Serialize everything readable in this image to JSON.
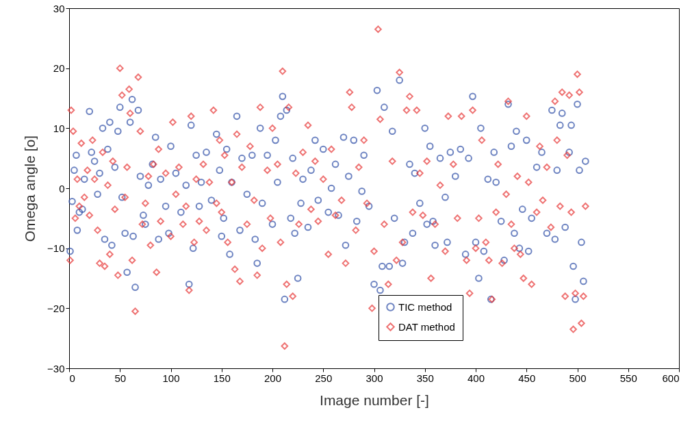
{
  "chart_data": {
    "type": "scatter",
    "xlabel": "Image number [-]",
    "ylabel": "Omega angle [o]",
    "xlim": [
      0,
      600
    ],
    "xticks": [
      0,
      50,
      100,
      150,
      200,
      250,
      300,
      350,
      400,
      450,
      500,
      550,
      600
    ],
    "ylim": [
      -30,
      30
    ],
    "yticks": [
      -30,
      -20,
      -10,
      0,
      10,
      20,
      30
    ],
    "grid": false,
    "legend": "bottom right",
    "series": [
      {
        "name": "TIC method",
        "color": "#3050a8",
        "marker": "circle",
        "x": [
          1,
          3,
          5,
          7,
          8,
          10,
          13,
          15,
          20,
          22,
          25,
          28,
          30,
          33,
          35,
          38,
          40,
          42,
          45,
          48,
          50,
          52,
          55,
          57,
          60,
          62,
          63,
          65,
          68,
          70,
          73,
          75,
          78,
          82,
          85,
          88,
          90,
          95,
          98,
          100,
          105,
          110,
          115,
          118,
          120,
          122,
          125,
          128,
          130,
          135,
          140,
          145,
          148,
          150,
          152,
          155,
          158,
          160,
          165,
          168,
          170,
          175,
          180,
          183,
          185,
          188,
          190,
          195,
          200,
          203,
          205,
          208,
          210,
          212,
          214,
          218,
          220,
          222,
          225,
          228,
          230,
          235,
          238,
          242,
          245,
          250,
          255,
          258,
          262,
          265,
          270,
          272,
          275,
          280,
          283,
          288,
          290,
          295,
          300,
          303,
          306,
          308,
          310,
          315,
          318,
          320,
          325,
          328,
          330,
          335,
          338,
          340,
          345,
          350,
          352,
          355,
          358,
          360,
          365,
          370,
          372,
          375,
          380,
          385,
          390,
          393,
          397,
          400,
          403,
          405,
          408,
          412,
          415,
          418,
          420,
          425,
          428,
          432,
          435,
          438,
          440,
          443,
          446,
          450,
          452,
          455,
          460,
          465,
          470,
          475,
          478,
          480,
          483,
          485,
          488,
          492,
          494,
          496,
          498,
          500,
          502,
          504,
          506,
          508
        ],
        "values": [
          -10.5,
          -2.2,
          3,
          5.5,
          -7,
          -4,
          -3.5,
          1.5,
          12.8,
          6,
          4.5,
          -1,
          2.5,
          10,
          -8.5,
          6.5,
          11,
          -9.5,
          3.5,
          9.5,
          13.5,
          -1.5,
          -7.5,
          -14,
          11,
          14.8,
          -8,
          -16.5,
          13,
          2,
          -4.5,
          -6,
          0.5,
          4,
          8.5,
          -8.5,
          1.5,
          -3,
          -7.5,
          7,
          2.5,
          -4,
          0.5,
          -16,
          10.5,
          -10,
          5.5,
          -3,
          1,
          6,
          -2,
          9,
          3,
          -8,
          -5,
          6.5,
          -11,
          1,
          12,
          -7,
          5,
          -1,
          5.5,
          -8.5,
          -12.5,
          10,
          -2.5,
          5.5,
          -6,
          8,
          1,
          12,
          15.3,
          -18.5,
          13,
          -5,
          5,
          -7.5,
          -15,
          -2.5,
          1.5,
          -6.5,
          3,
          8,
          -2,
          6.5,
          -4,
          0,
          4,
          -4.5,
          8.5,
          -9.5,
          2,
          8,
          -5.5,
          -0.5,
          5.5,
          -3,
          -16,
          16.3,
          -17,
          -13,
          13.5,
          -13,
          9.5,
          -5,
          18,
          -12.5,
          -9,
          4,
          -7.5,
          2.5,
          -2.5,
          10,
          -6,
          7,
          -5.5,
          -9.5,
          5,
          -1.5,
          -9,
          6,
          2,
          6.5,
          -11,
          5,
          15.3,
          -9,
          -15,
          10,
          -10.5,
          1.5,
          -18.5,
          6,
          1,
          -5.5,
          -12,
          14,
          7,
          -7.5,
          9.5,
          -10,
          -3.5,
          8,
          -10.5,
          -5,
          3.5,
          6,
          -7.5,
          13,
          -8.5,
          3,
          10.5,
          12.5,
          -6.5,
          6,
          10.5,
          -13,
          -18.5,
          14,
          3,
          -9,
          -15.5,
          4.5
        ]
      },
      {
        "name": "DAT method",
        "color": "#e83838",
        "marker": "diamond",
        "x": [
          1,
          2,
          4,
          6,
          8,
          10,
          12,
          15,
          18,
          20,
          23,
          25,
          28,
          30,
          33,
          35,
          38,
          40,
          43,
          45,
          48,
          50,
          52,
          55,
          57,
          59,
          60,
          62,
          65,
          68,
          70,
          72,
          75,
          78,
          80,
          83,
          86,
          88,
          90,
          95,
          100,
          102,
          105,
          108,
          112,
          115,
          118,
          120,
          123,
          125,
          128,
          132,
          135,
          138,
          142,
          145,
          148,
          150,
          153,
          156,
          160,
          163,
          165,
          168,
          170,
          175,
          178,
          182,
          185,
          188,
          190,
          195,
          198,
          200,
          205,
          208,
          210,
          212,
          214,
          216,
          220,
          223,
          226,
          230,
          235,
          238,
          242,
          245,
          250,
          255,
          258,
          262,
          268,
          272,
          276,
          278,
          282,
          285,
          290,
          293,
          298,
          300,
          304,
          306,
          310,
          314,
          318,
          322,
          325,
          328,
          332,
          335,
          338,
          342,
          345,
          348,
          352,
          356,
          360,
          365,
          370,
          373,
          378,
          382,
          386,
          391,
          394,
          397,
          400,
          403,
          406,
          410,
          413,
          416,
          420,
          422,
          426,
          430,
          432,
          435,
          438,
          441,
          444,
          447,
          450,
          452,
          455,
          460,
          463,
          466,
          470,
          474,
          478,
          480,
          483,
          485,
          488,
          490,
          492,
          494,
          496,
          498,
          500,
          502,
          504,
          506,
          508
        ],
        "values": [
          -12,
          13,
          9.5,
          -5,
          1.5,
          -3,
          7.5,
          -1.5,
          3,
          -4.5,
          8,
          1.5,
          -7,
          -12.5,
          6,
          -13,
          0.5,
          -11,
          4.5,
          -3.5,
          -14.5,
          20,
          15.5,
          -1.5,
          3.5,
          16.5,
          12.5,
          -12,
          -20.5,
          18.5,
          9.5,
          -6,
          -2.5,
          2,
          -9.5,
          4,
          -14,
          6.5,
          -5.5,
          2.5,
          -8,
          11,
          -1,
          3.5,
          -6,
          -3,
          -17,
          12,
          -9,
          1.5,
          -5.5,
          4,
          -7,
          1,
          13,
          -2.5,
          8,
          -4,
          5.5,
          -9,
          1,
          -13.5,
          9,
          -15.5,
          3.5,
          -6,
          7,
          -2,
          -14.5,
          13.5,
          -10,
          3,
          -5,
          10,
          4,
          -9,
          19.5,
          -26.3,
          -16,
          13.5,
          -18,
          2.5,
          -6,
          6,
          10.5,
          -3.5,
          4.5,
          -5.5,
          1.5,
          -11,
          6.5,
          -4.5,
          -2,
          -12.5,
          16,
          13.5,
          -7,
          3.5,
          8,
          -2.5,
          -20,
          -10.5,
          26.5,
          11.5,
          -6,
          -16,
          4.5,
          -12,
          19.3,
          -9,
          13,
          15.3,
          -4,
          13,
          2.5,
          -4.5,
          4.5,
          -15,
          -6,
          0.5,
          -10.5,
          12,
          4,
          -5,
          12,
          -12,
          -17.5,
          13,
          -10,
          -5,
          8,
          -9,
          -12,
          -18.5,
          -4,
          4,
          -12.5,
          -1,
          14.5,
          -6,
          -10,
          2,
          -11,
          -15,
          12,
          1,
          -16,
          -4,
          7,
          -2,
          3.5,
          -6.5,
          14.5,
          8,
          -3,
          16,
          -18,
          5.5,
          15.5,
          -4,
          -23.5,
          -17.5,
          19,
          16,
          -22.5,
          -18,
          -3
        ]
      }
    ]
  }
}
